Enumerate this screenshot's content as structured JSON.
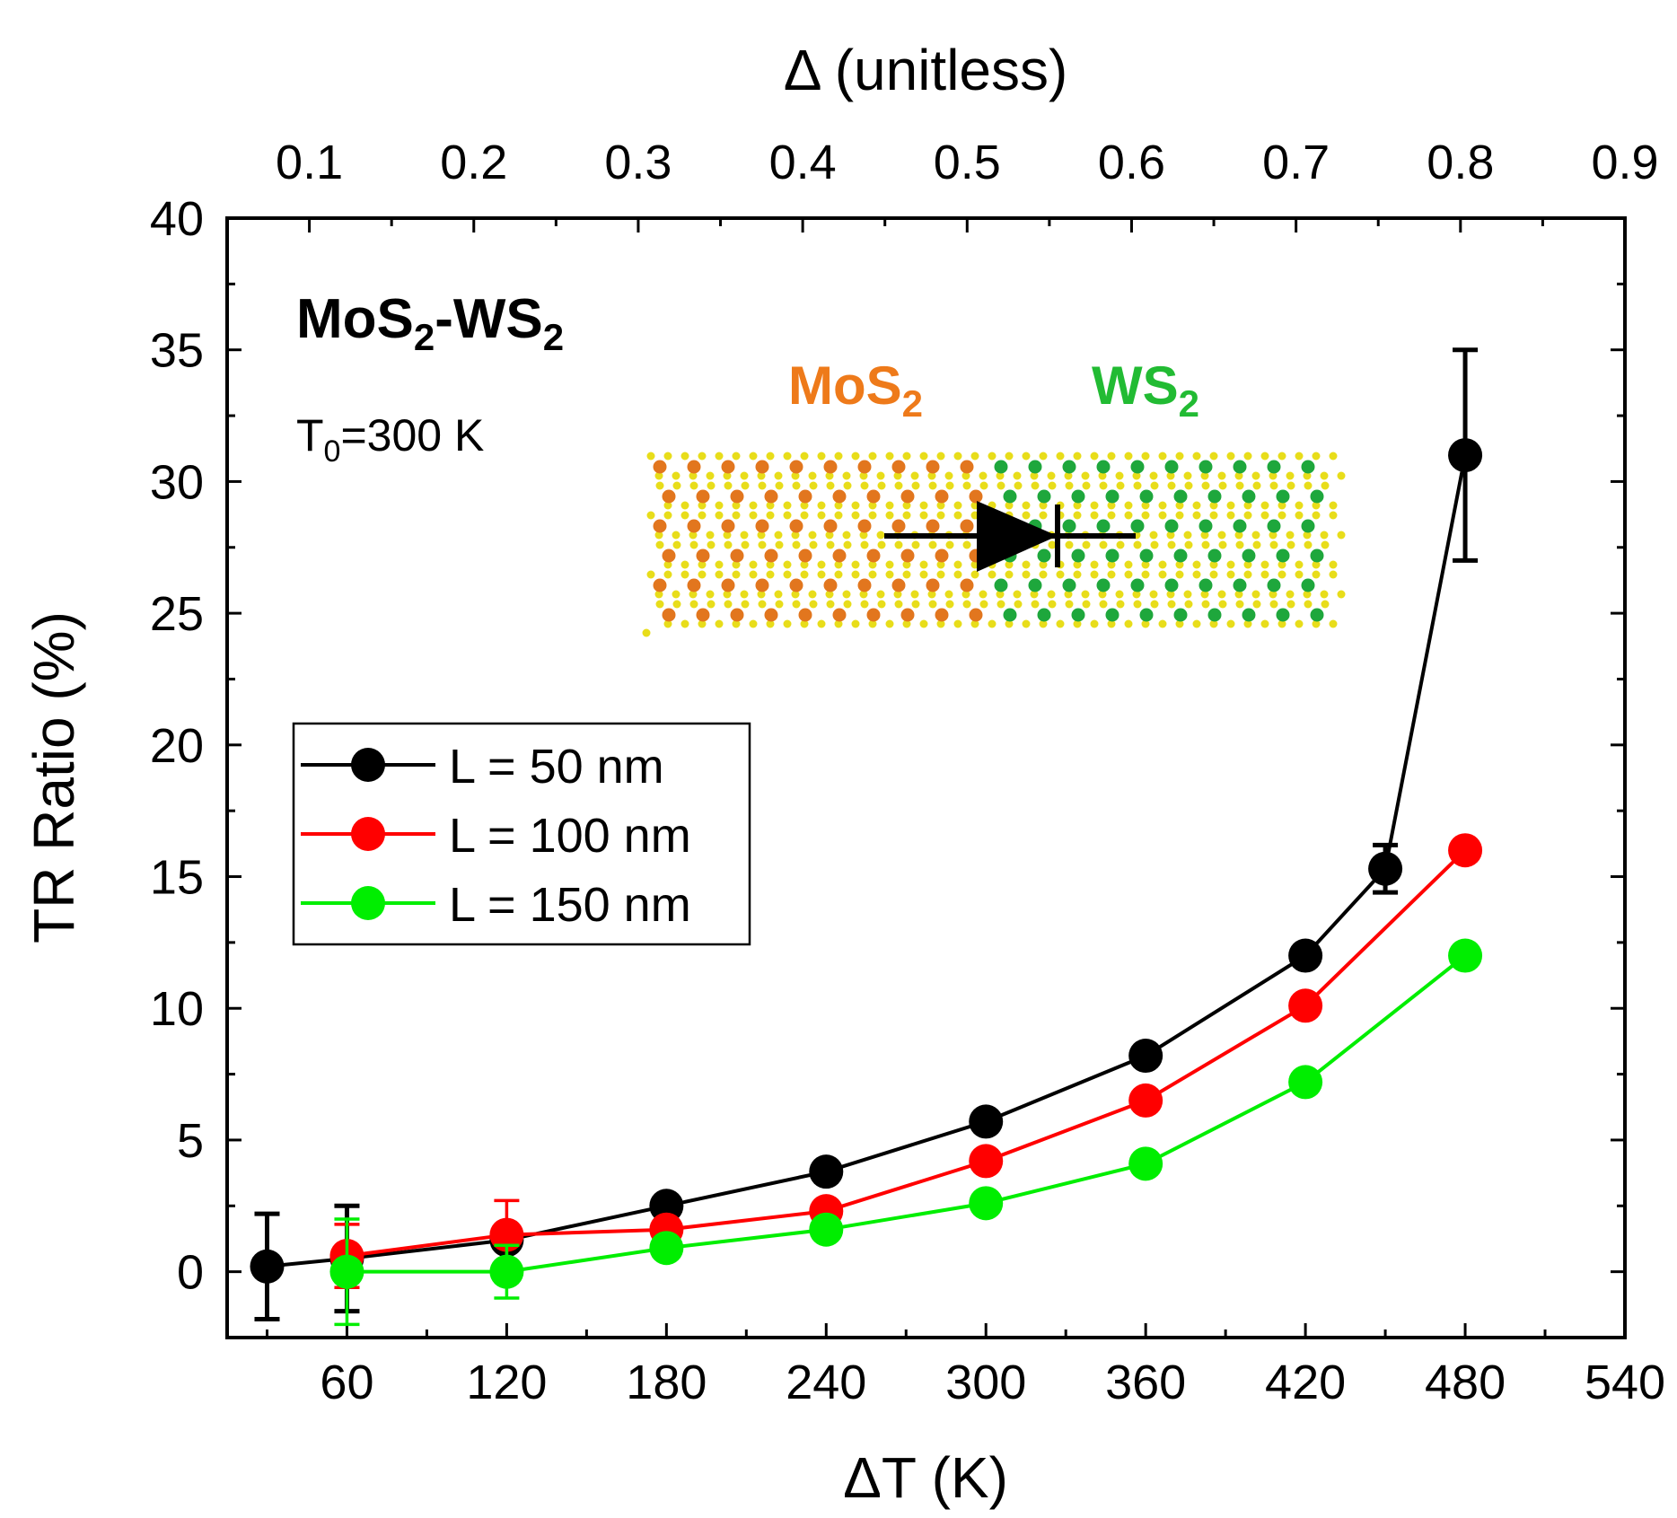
{
  "chart_data": {
    "type": "line",
    "title": "",
    "xlabel": "ΔT (K)",
    "ylabel": "TR Ratio (%)",
    "x2label": "Δ (unitless)",
    "xlim": [
      15,
      540
    ],
    "ylim": [
      -2.5,
      40
    ],
    "x2lim": [
      0.05,
      0.9
    ],
    "xticks": [
      60,
      120,
      180,
      240,
      300,
      360,
      420,
      480,
      540
    ],
    "x2ticks": [
      0.1,
      0.2,
      0.3,
      0.4,
      0.5,
      0.6,
      0.7,
      0.8,
      0.9
    ],
    "yticks": [
      0,
      5,
      10,
      15,
      20,
      25,
      30,
      35,
      40
    ],
    "x_tick_labels": [
      "60",
      "120",
      "180",
      "240",
      "300",
      "360",
      "420",
      "480",
      "540"
    ],
    "x2_tick_labels": [
      "0.1",
      "0.2",
      "0.3",
      "0.4",
      "0.5",
      "0.6",
      "0.7",
      "0.8",
      "0.9"
    ],
    "y_tick_labels": [
      "0",
      "5",
      "10",
      "15",
      "20",
      "25",
      "30",
      "35",
      "40"
    ],
    "grid": false,
    "legend_position": "middle-left",
    "series": [
      {
        "name": "L = 50 nm",
        "color": "#000000",
        "x": [
          30,
          60,
          120,
          180,
          240,
          300,
          360,
          420,
          450,
          480
        ],
        "y": [
          0.2,
          0.5,
          1.2,
          2.5,
          3.8,
          5.7,
          8.2,
          12.0,
          15.3,
          31.0
        ],
        "error": [
          2.0,
          2.0,
          null,
          null,
          null,
          null,
          null,
          null,
          0.9,
          4.0
        ]
      },
      {
        "name": "L = 100 nm",
        "color": "#ff0000",
        "x": [
          60,
          120,
          180,
          240,
          300,
          360,
          420,
          480
        ],
        "y": [
          0.6,
          1.4,
          1.6,
          2.3,
          4.2,
          6.5,
          10.1,
          16.0
        ],
        "error": [
          1.2,
          1.3,
          null,
          null,
          null,
          null,
          null,
          null
        ]
      },
      {
        "name": "L = 150 nm",
        "color": "#00ee00",
        "x": [
          60,
          120,
          180,
          240,
          300,
          360,
          420,
          480
        ],
        "y": [
          0.0,
          0.0,
          0.9,
          1.6,
          2.6,
          4.1,
          7.2,
          12.0
        ],
        "error": [
          2.0,
          1.0,
          null,
          null,
          null,
          null,
          null,
          null
        ]
      }
    ],
    "annotations": {
      "system_prefix": "MoS",
      "system_sub1": "2",
      "system_mid": "-WS",
      "system_sub2": "2",
      "t0_prefix": "T",
      "t0_sub": "0",
      "t0_suffix": "=300 K",
      "left_material": "MoS",
      "left_material_sub": "2",
      "right_material": "WS",
      "right_material_sub": "2",
      "left_color": "#ee7a1a",
      "right_color": "#22bb33"
    }
  }
}
